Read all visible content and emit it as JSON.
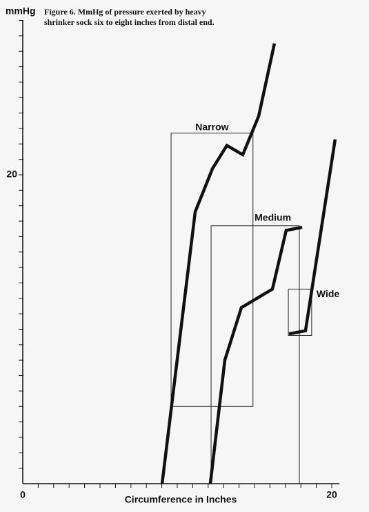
{
  "chart_data": {
    "type": "line",
    "title": "Figure 6. MmHg of pressure exerted by heavy shrinker sock six to eight inches from distal end.",
    "y_label": "mmHg",
    "x_label": "Circumference in Inches",
    "xlim": [
      0,
      20.5
    ],
    "ylim": [
      0,
      30
    ],
    "xticks": [
      0,
      20
    ],
    "yticks": [
      20
    ],
    "xminor": [
      1,
      2,
      3,
      4,
      5,
      6,
      7,
      8,
      9,
      10,
      11,
      12,
      13,
      14,
      15,
      16,
      17,
      18,
      19,
      20
    ],
    "yminor": [
      1,
      2,
      3,
      4,
      5,
      6,
      7,
      8,
      9,
      10,
      11,
      12,
      13,
      14,
      15,
      16,
      17,
      18,
      19,
      20,
      21,
      22,
      23,
      24,
      25,
      26,
      27,
      28,
      29,
      30
    ],
    "series": [
      {
        "color": "#111111",
        "x": [
          9.02,
          11.16,
          12.28,
          13.21,
          14.24,
          15.27,
          16.29
        ],
        "values": [
          0,
          17.6,
          20.4,
          21.9,
          21.3,
          23.8,
          28.5
        ]
      },
      {
        "color": "#111111",
        "x": [
          12.14,
          13.08,
          14.15,
          16.16,
          17.05,
          18.08
        ],
        "values": [
          0,
          8.0,
          11.4,
          12.6,
          16.4,
          16.6
        ]
      },
      {
        "color": "#111111",
        "x": [
          17.23,
          18.3,
          20.22
        ],
        "values": [
          9.7,
          9.9,
          22.3
        ]
      }
    ],
    "boxes": [
      {
        "label": "Narrow",
        "x": [
          9.6,
          14.9
        ],
        "y": [
          5.0,
          22.7
        ]
      },
      {
        "label": "Medium",
        "x": [
          12.19,
          17.9
        ],
        "y": [
          0,
          16.7
        ]
      },
      {
        "label": "Wide",
        "x": [
          17.19,
          18.7
        ],
        "y": [
          9.6,
          12.6
        ]
      }
    ]
  }
}
